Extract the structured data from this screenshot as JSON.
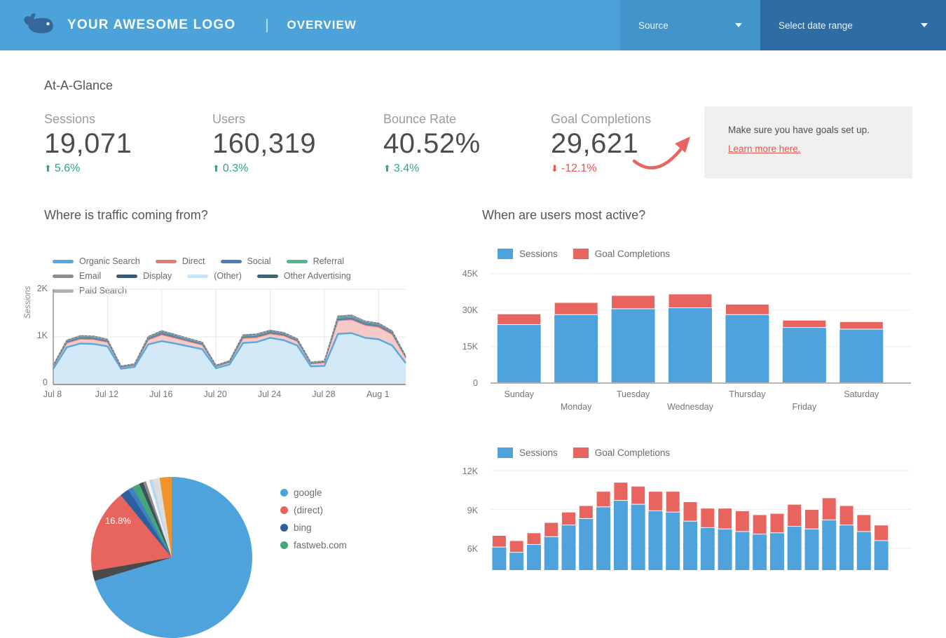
{
  "header": {
    "logo_text": "YOUR AWESOME LOGO",
    "separator": "|",
    "nav_title": "OVERVIEW",
    "source_label": "Source",
    "date_range_label": "Select date range"
  },
  "colors": {
    "header_bg": "#4BA3D9",
    "source_dropdown_bg": "#4394CA",
    "date_dropdown_bg": "#2E6CA4",
    "positive": "#2EA884",
    "negative": "#E4564F",
    "sessions_blue": "#4FA3DC",
    "goals_red": "#E8655F",
    "note_bg": "#efefef"
  },
  "at_a_glance": {
    "title": "At-A-Glance",
    "kpis": [
      {
        "label": "Sessions",
        "value": "19,071",
        "delta": "5.6%",
        "direction": "up",
        "arrow": "⬆"
      },
      {
        "label": "Users",
        "value": "160,319",
        "delta": "0.3%",
        "direction": "up",
        "arrow": "⬆"
      },
      {
        "label": "Bounce Rate",
        "value": "40.52%",
        "delta": "3.4%",
        "direction": "up",
        "arrow": "⬆"
      },
      {
        "label": "Goal Completions",
        "value": "29,621",
        "delta": "-12.1%",
        "direction": "down",
        "arrow": "⬇"
      }
    ],
    "note": {
      "line1": "Make sure you have goals set up.",
      "link_text": "Learn more here."
    }
  },
  "sections": {
    "traffic_title": "Where is traffic coming from?",
    "active_title": "When are users most active?"
  },
  "chart_data": [
    {
      "id": "traffic-area",
      "type": "area",
      "stacked": true,
      "ylabel": "Sessions",
      "yticks": [
        "2K",
        "1K",
        "0"
      ],
      "ylim": [
        0,
        2000
      ],
      "grid": true,
      "legend_position": "top",
      "x_tick_labels": [
        "Jul 8",
        "Jul 12",
        "Jul 16",
        "Jul 20",
        "Jul 24",
        "Jul 28",
        "Aug 1"
      ],
      "x_tick_indices": [
        0,
        4,
        8,
        12,
        16,
        20,
        24
      ],
      "n_points": 27,
      "series": [
        {
          "name": "Organic Search",
          "color": "#56A8DD",
          "fill": "#D4E9F7",
          "values": [
            330,
            780,
            860,
            850,
            800,
            330,
            370,
            840,
            910,
            860,
            800,
            740,
            340,
            420,
            870,
            890,
            980,
            930,
            820,
            380,
            390,
            1060,
            1080,
            980,
            950,
            820,
            450
          ]
        },
        {
          "name": "Direct",
          "color": "#E57D76",
          "fill": "#F5C9C6",
          "values": [
            45,
            90,
            95,
            95,
            90,
            30,
            35,
            95,
            135,
            115,
            100,
            90,
            35,
            45,
            100,
            95,
            85,
            95,
            85,
            55,
            70,
            280,
            280,
            265,
            255,
            235,
            110
          ]
        },
        {
          "name": "Social",
          "color": "#4A7EBB",
          "fill": "#4A7EBB",
          "values": [
            10,
            18,
            20,
            20,
            18,
            8,
            9,
            20,
            25,
            22,
            20,
            18,
            9,
            10,
            22,
            22,
            22,
            20,
            18,
            10,
            10,
            30,
            30,
            28,
            26,
            22,
            12
          ]
        },
        {
          "name": "Referral",
          "color": "#56B68B",
          "fill": "#56B68B",
          "values": [
            8,
            15,
            18,
            18,
            15,
            7,
            8,
            18,
            22,
            20,
            18,
            15,
            8,
            9,
            20,
            20,
            20,
            18,
            15,
            9,
            9,
            25,
            25,
            22,
            20,
            18,
            10
          ]
        },
        {
          "name": "Email",
          "color": "#8F8F8F",
          "fill": "#8F8F8F",
          "values": [
            4,
            8,
            9,
            9,
            8,
            3,
            4,
            9,
            10,
            9,
            8,
            7,
            4,
            4,
            9,
            9,
            9,
            8,
            7,
            4,
            4,
            12,
            12,
            11,
            10,
            9,
            5
          ]
        },
        {
          "name": "Display",
          "color": "#3D5A73",
          "fill": "#3D5A73",
          "values": [
            4,
            7,
            8,
            8,
            7,
            3,
            3,
            8,
            9,
            8,
            7,
            6,
            3,
            4,
            8,
            8,
            8,
            7,
            6,
            4,
            4,
            10,
            10,
            9,
            9,
            8,
            4
          ]
        },
        {
          "name": "(Other)",
          "color": "#C9E4F5",
          "fill": "#D9ECF8",
          "values": [
            3,
            5,
            6,
            6,
            5,
            2,
            3,
            6,
            7,
            6,
            5,
            5,
            2,
            3,
            6,
            6,
            6,
            5,
            5,
            3,
            3,
            8,
            8,
            7,
            7,
            6,
            3
          ]
        },
        {
          "name": "Other Advertising",
          "color": "#46616F",
          "fill": "#46616F",
          "values": [
            4,
            7,
            8,
            8,
            7,
            3,
            3,
            8,
            9,
            8,
            7,
            6,
            3,
            4,
            8,
            8,
            8,
            7,
            6,
            4,
            4,
            10,
            10,
            9,
            9,
            8,
            4
          ]
        },
        {
          "name": "Paid Search",
          "color": "#AFAFAF",
          "fill": "#F2F2F2",
          "dash": true,
          "values": [
            2,
            4,
            5,
            5,
            4,
            2,
            2,
            5,
            6,
            5,
            4,
            4,
            2,
            2,
            5,
            5,
            5,
            4,
            4,
            2,
            2,
            6,
            6,
            5,
            5,
            4,
            2
          ]
        }
      ]
    },
    {
      "id": "weekly-bars",
      "type": "bar",
      "stacked": true,
      "grid": true,
      "legend_position": "top",
      "categories": [
        "Sunday",
        "Monday",
        "Tuesday",
        "Wednesday",
        "Thursday",
        "Friday",
        "Saturday"
      ],
      "yticks": [
        "45K",
        "30K",
        "15K",
        "0"
      ],
      "ylim": [
        0,
        45000
      ],
      "series": [
        {
          "name": "Sessions",
          "color": "#4FA3DC",
          "values": [
            24100,
            28200,
            30600,
            31000,
            28200,
            22900,
            22200
          ]
        },
        {
          "name": "Goal Completions",
          "color": "#E8655F",
          "values": [
            4400,
            5000,
            5500,
            5700,
            4300,
            3000,
            3100
          ]
        }
      ]
    },
    {
      "id": "source-pie",
      "type": "pie",
      "percent_label": "16.8%",
      "slices": [
        {
          "label": "google",
          "color": "#4FA3DC",
          "value": 70.3
        },
        {
          "label": "",
          "color": "#4A4A4A",
          "value": 2.0
        },
        {
          "label": "(direct)",
          "color": "#E8655F",
          "value": 16.8
        },
        {
          "label": "bing",
          "color": "#2B5F9E",
          "value": 1.8
        },
        {
          "label": "",
          "color": "#3E7FC1",
          "value": 1.0
        },
        {
          "label": "fastweb.com",
          "color": "#45A779",
          "value": 1.5
        },
        {
          "label": "",
          "color": "#3D4F5D",
          "value": 0.8
        },
        {
          "label": "",
          "color": "#8A8A8A",
          "value": 0.6
        },
        {
          "label": "",
          "color": "#F4F4F4",
          "value": 0.7
        },
        {
          "label": "",
          "color": "#AFD8F2",
          "value": 0.6
        },
        {
          "label": "",
          "color": "#DDDDDD",
          "value": 1.5
        },
        {
          "label": "",
          "color": "#F0932C",
          "value": 2.4
        }
      ],
      "legend": [
        {
          "label": "google",
          "color": "#4FA3DC"
        },
        {
          "label": "(direct)",
          "color": "#E8655F"
        },
        {
          "label": "bing",
          "color": "#2B5F9E"
        },
        {
          "label": "fastweb.com",
          "color": "#45A779"
        },
        {
          "label": "",
          "color": "#555555"
        }
      ]
    },
    {
      "id": "daily-bars",
      "type": "bar",
      "stacked": true,
      "grid": true,
      "legend_position": "top",
      "x_axis_labels_visible": false,
      "yticks": [
        "12K",
        "9K",
        "6K"
      ],
      "visible_ylim": [
        6000,
        12000
      ],
      "series": [
        {
          "name": "Sessions",
          "color": "#4FA3DC",
          "values": [
            6100,
            5700,
            6300,
            6900,
            7800,
            8300,
            9200,
            9700,
            9400,
            8900,
            8800,
            8100,
            7600,
            7500,
            7300,
            7100,
            7200,
            7700,
            7500,
            8200,
            7800,
            7300,
            6600
          ]
        },
        {
          "name": "Goal Completions",
          "color": "#E8655F",
          "values": [
            900,
            900,
            900,
            1100,
            1000,
            1000,
            1200,
            1400,
            1400,
            1500,
            1600,
            1500,
            1500,
            1600,
            1600,
            1500,
            1500,
            1700,
            1500,
            1700,
            1500,
            1300,
            1200
          ]
        }
      ]
    }
  ]
}
